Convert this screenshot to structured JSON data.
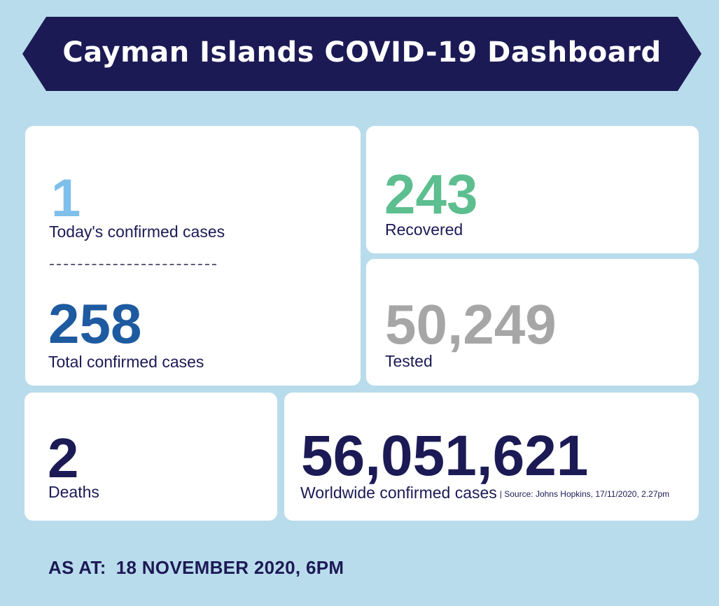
{
  "header": {
    "title": "Cayman Islands COVID-19 Dashboard"
  },
  "colors": {
    "background": "#b9dcec",
    "navy": "#1c1a55",
    "today": "#7fbfea",
    "total": "#1e5aa0",
    "recovered": "#5dbe8f",
    "tested": "#a6a6a6"
  },
  "stats": {
    "today": {
      "value": "1",
      "label": "Today's confirmed cases"
    },
    "total": {
      "value": "258",
      "label": "Total confirmed cases"
    },
    "recovered": {
      "value": "243",
      "label": "Recovered"
    },
    "tested": {
      "value": "50,249",
      "label": "Tested"
    },
    "deaths": {
      "value": "2",
      "label": "Deaths"
    },
    "worldwide": {
      "value": "56,051,621",
      "label": "Worldwide confirmed cases",
      "source": "| Source: Johns Hopkins, 17/11/2020, 2.27pm"
    }
  },
  "footer": {
    "as_at_label": "AS AT:",
    "as_at_value": "18 NOVEMBER 2020, 6PM"
  }
}
